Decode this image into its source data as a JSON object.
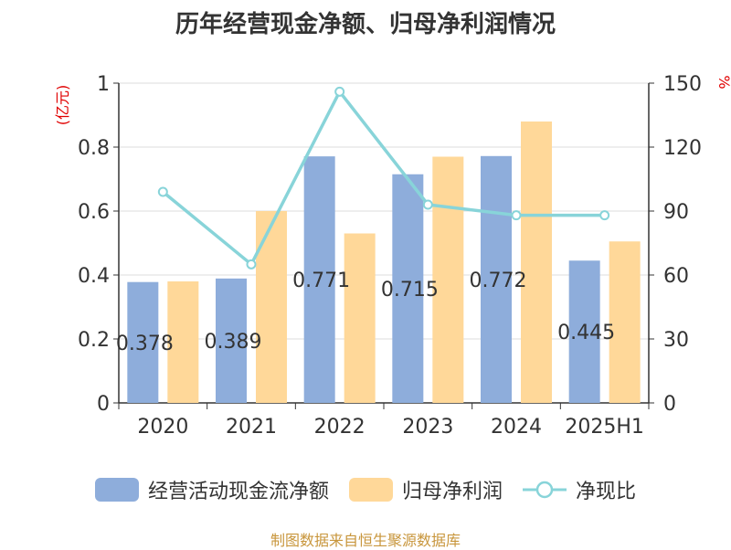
{
  "title": "历年经营现金净额、归母净利润情况",
  "source": "制图数据来自恒生聚源数据库",
  "colors": {
    "cash": "#8eaddb",
    "profit": "#ffd899",
    "ratio": "#88d4d9",
    "unit": "#e00000"
  },
  "chart_data": {
    "type": "bar",
    "categories": [
      "2020",
      "2021",
      "2022",
      "2023",
      "2024",
      "2025H1"
    ],
    "left_axis": {
      "unit": "(亿元)",
      "ylim": [
        0,
        1
      ],
      "ticks": [
        "0",
        "0.2",
        "0.4",
        "0.6",
        "0.8",
        "1"
      ]
    },
    "right_axis": {
      "unit": "%",
      "ylim": [
        0,
        150
      ],
      "ticks": [
        "0",
        "30",
        "60",
        "90",
        "120",
        "150"
      ]
    },
    "series": [
      {
        "name": "经营活动现金流净额",
        "type": "bar",
        "axis": "left",
        "values": [
          0.378,
          0.389,
          0.771,
          0.715,
          0.772,
          0.445
        ],
        "labels": [
          "0.378",
          "0.389",
          "0.771",
          "0.715",
          "0.772",
          "0.445"
        ]
      },
      {
        "name": "归母净利润",
        "type": "bar",
        "axis": "left",
        "values": [
          0.38,
          0.6,
          0.53,
          0.77,
          0.88,
          0.505
        ]
      },
      {
        "name": "净现比",
        "type": "line",
        "axis": "right",
        "values": [
          99,
          65,
          146,
          93,
          88,
          88
        ]
      }
    ],
    "legend_position": "bottom",
    "grid": true
  }
}
